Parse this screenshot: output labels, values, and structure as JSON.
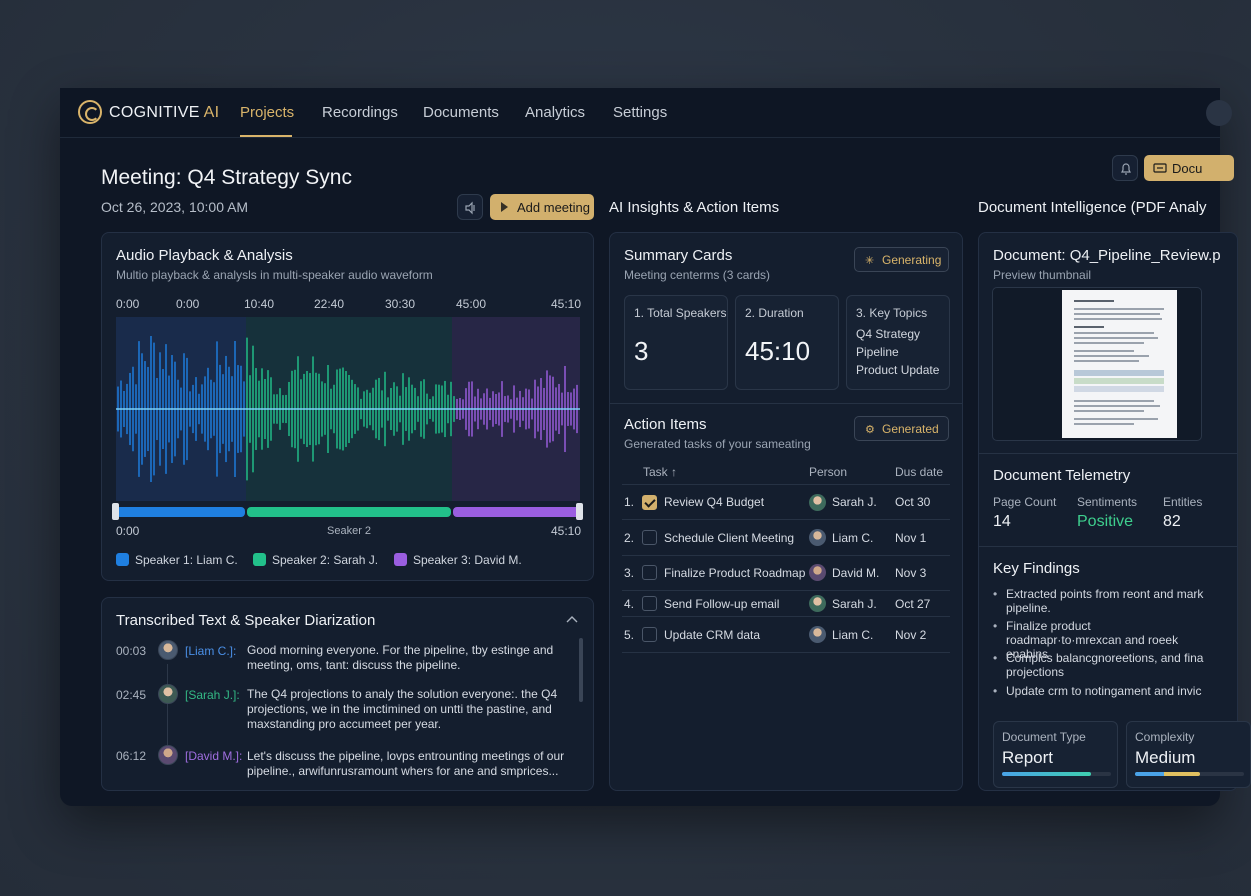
{
  "app": {
    "brand_main": "COGNITIVE",
    "brand_accent": "AI"
  },
  "nav": {
    "tabs": [
      "Projects",
      "Recordings",
      "Documents",
      "Analytics",
      "Settings"
    ],
    "active": "Projects"
  },
  "header": {
    "title": "Meeting: Q4 Strategy Sync",
    "date": "Oct 26, 2023, 10:00 AM",
    "add_meeting_label": "Add meeting",
    "doc_button_label": "Docu"
  },
  "columns": {
    "insights_title": "AI Insights & Action Items",
    "doc_intel_title": "Document Intelligence (PDF Analy"
  },
  "audio": {
    "title": "Audio Playback & Analysis",
    "subtitle": "Multio playback & analysls  in multi-speaker audio waveform",
    "top_ticks": [
      "0:00",
      "0:00",
      "10:40",
      "22:40",
      "30:30",
      "45:00",
      "45:10"
    ],
    "bottom_start": "0:00",
    "bottom_mid": "Seaker 2",
    "bottom_end": "45:10",
    "segments": [
      0.0,
      0.28,
      0.73,
      1.0
    ],
    "speakers": [
      {
        "label": "Speaker 1: Liam C.",
        "color": "#1f7fe0"
      },
      {
        "label": "Speaker 2: Sarah J.",
        "color": "#22c08a"
      },
      {
        "label": "Speaker 3: David M.",
        "color": "#9a5ee0"
      }
    ]
  },
  "transcript": {
    "title": "Transcribed Text & Speaker Diarization",
    "entries": [
      {
        "time": "00:03",
        "speaker": "[Liam C.]:",
        "color": "#4a8fe6",
        "text": "Good morning everyone. For the pipeline, tby estinge and meeting, oms, tant: discuss the pipeline."
      },
      {
        "time": "02:45",
        "speaker": "[Sarah J.]:",
        "color": "#33b985",
        "text": "The Q4 projections to analy the solution everyone:. the Q4 projections, we in the imctimined on untti the pastine, and maxstanding pro accumeet per year."
      },
      {
        "time": "06:12",
        "speaker": "[David M.]:",
        "color": "#a06ee0",
        "text": "Let's discuss the pipeline, lovps entrounting meetings of our pipeline., arwifunrusramount whers for ane and smprices..."
      }
    ]
  },
  "summary": {
    "title": "Summary Cards",
    "subtitle": "Meeting centerms (3 cards)",
    "status_label": "Generating",
    "cards": [
      {
        "label": "1. Total Speakers",
        "value": "3"
      },
      {
        "label": "2. Duration",
        "value": "45:10"
      },
      {
        "label": "3. Key Topics",
        "topics": [
          "Q4 Strategy",
          "Pipeline",
          "Product Update"
        ]
      }
    ]
  },
  "actions": {
    "title": "Action Items",
    "subtitle": "Generated tasks of your sameating",
    "status_label": "Generated",
    "columns": {
      "task": "Task ↑",
      "person": "Person",
      "due": "Dus date"
    },
    "rows": [
      {
        "num": "1.",
        "task": "Review Q4 Budget",
        "person": "Sarah J.",
        "due": "Oct 30",
        "checked": true
      },
      {
        "num": "2.",
        "task": "Schedule Client Meeting",
        "person": "Liam C.",
        "due": "Nov 1",
        "checked": false
      },
      {
        "num": "3.",
        "task": "Finalize Product Roadmap",
        "person": "David M.",
        "due": "Nov 3",
        "checked": false
      },
      {
        "num": "4.",
        "task": "Send Follow-up email",
        "person": "Sarah J.",
        "due": "Oct 27",
        "checked": false
      },
      {
        "num": "5.",
        "task": "Update CRM data",
        "person": "Liam C.",
        "due": "Nov 2",
        "checked": false
      }
    ]
  },
  "document": {
    "title": "Document: Q4_Pipeline_Review.p",
    "preview_label": "Preview thumbnail",
    "telemetry_title": "Document Telemetry",
    "page_count_label": "Page Count",
    "page_count": "14",
    "sentiment_label": "Sentiments",
    "sentiment": "Positive",
    "entities_label": "Entities",
    "entities": "82",
    "findings_title": "Key Findings",
    "findings": [
      "Extracted points from reont and mark pipeline.",
      "Finalize product roadmapr·to·mrexcan and roeek enabins",
      "Complcs balancgnoreetions, and fina projections",
      "Update crm to notingament and invic"
    ],
    "type_label": "Document Type",
    "type_value": "Report",
    "type_fill": 0.82,
    "complexity_label": "Complexity",
    "complexity_value": "Medium",
    "complexity_fill": 0.6
  },
  "colors": {
    "accent": "#d9b46a",
    "positive": "#3ecf8e",
    "speaker1": "#1f7fe0",
    "speaker2": "#22c08a",
    "speaker3": "#9a5ee0"
  }
}
